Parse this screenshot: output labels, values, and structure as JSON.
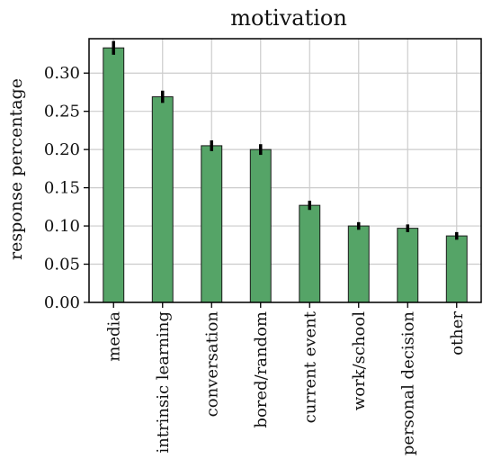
{
  "chart_data": {
    "type": "bar",
    "title": "motivation",
    "xlabel": "",
    "ylabel": "response percentage",
    "categories": [
      "media",
      "intrinsic learning",
      "conversation",
      "bored/random",
      "current event",
      "work/school",
      "personal decision",
      "other"
    ],
    "values": [
      0.333,
      0.269,
      0.205,
      0.2,
      0.127,
      0.1,
      0.097,
      0.087
    ],
    "errors": [
      0.009,
      0.008,
      0.007,
      0.007,
      0.006,
      0.005,
      0.005,
      0.005
    ],
    "ylim": [
      0,
      0.345
    ],
    "yticks": [
      0.0,
      0.05,
      0.1,
      0.15,
      0.2,
      0.25,
      0.3
    ],
    "ytick_labels": [
      "0.00",
      "0.05",
      "0.10",
      "0.15",
      "0.20",
      "0.25",
      "0.30"
    ],
    "grid": true,
    "colors": {
      "bar": "#55a467",
      "bar_edge": "#1a1a1a",
      "error": "#000000",
      "grid": "#cccccc",
      "axis": "#000000"
    }
  }
}
